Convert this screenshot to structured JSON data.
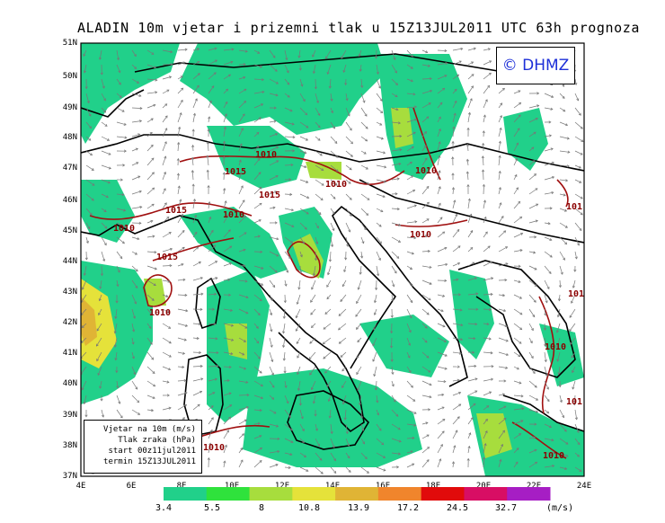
{
  "title": "ALADIN 10m vjetar i prizemni tlak u 15Z13JUL2011 UTC 63h prognoza",
  "logo": "© DHMZ",
  "info": {
    "line1": "Vjetar na 10m (m/s)",
    "line2": "Tlak zraka (hPa)",
    "line3": "start 00z11jul2011",
    "line4": "termin 15Z13JUL2011"
  },
  "y_axis": [
    "51N",
    "50N",
    "49N",
    "48N",
    "47N",
    "46N",
    "45N",
    "44N",
    "43N",
    "42N",
    "41N",
    "40N",
    "39N",
    "38N",
    "37N"
  ],
  "x_axis": [
    "4E",
    "6E",
    "8E",
    "10E",
    "12E",
    "14E",
    "16E",
    "18E",
    "20E",
    "22E",
    "24E"
  ],
  "isobars": [
    "1010",
    "1015",
    "1010",
    "1015",
    "1010",
    "1015",
    "1010",
    "1010",
    "1015",
    "1010",
    "1010",
    "1010",
    "1010",
    "1010",
    "1010",
    "1010",
    "101",
    "101",
    "101",
    "1010"
  ],
  "colorbar": {
    "values": [
      "3.4",
      "5.5",
      "8",
      "10.8",
      "13.9",
      "17.2",
      "24.5",
      "32.7"
    ],
    "colors": [
      "#21d08a",
      "#2fe23c",
      "#a7dd3d",
      "#e5e23a",
      "#e0b435",
      "#f0852c",
      "#e10b0b",
      "#d80e64",
      "#a61ec4"
    ],
    "unit": "(m/s)"
  }
}
